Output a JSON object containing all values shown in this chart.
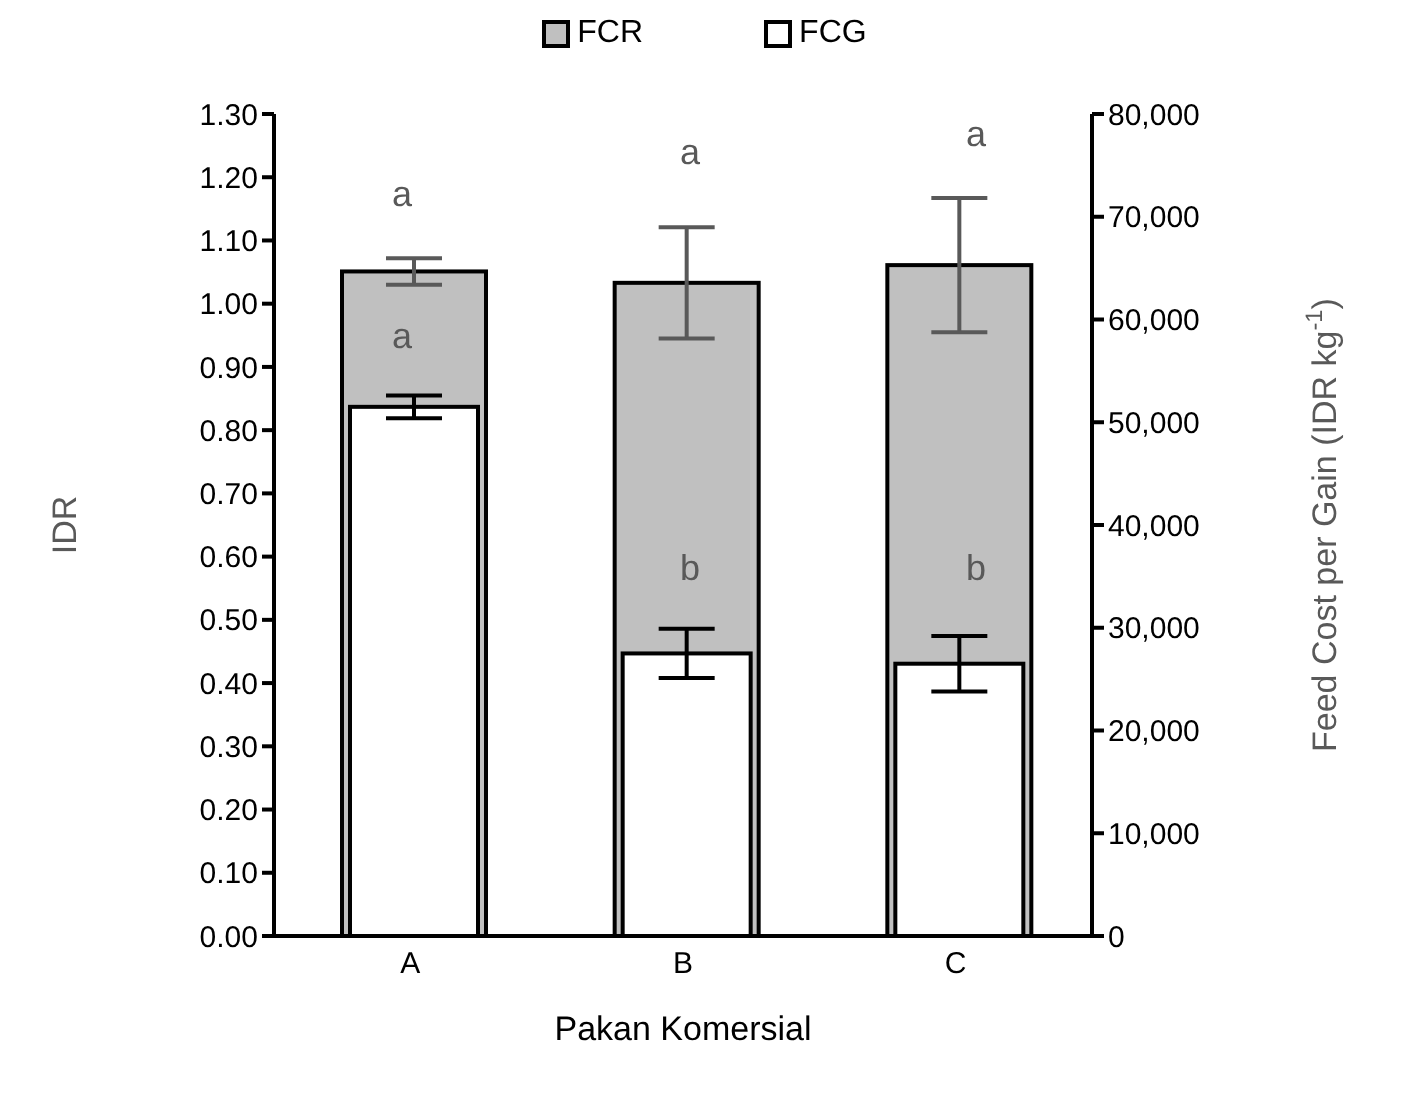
{
  "chart_data": {
    "type": "bar",
    "xlabel": "Pakan Komersial",
    "ylabel": "IDR",
    "y2label": "Feed Cost per Gain (IDR kg$^{-1}$)",
    "categories": [
      "A",
      "B",
      "C"
    ],
    "series": [
      {
        "name": "FCR",
        "color": "#c0c0c0",
        "values": [
          1.051,
          1.033,
          1.061
        ],
        "errors": [
          0.021,
          0.088,
          0.106
        ]
      },
      {
        "name": "FCG",
        "color": "#ffffff",
        "axis": "y2",
        "values": [
          51500,
          27500,
          26500
        ],
        "errors": [
          1100,
          2400,
          2700
        ]
      }
    ],
    "ylim": [
      0,
      1.3
    ],
    "yticks": [
      {
        "value": 0,
        "label": "0.00"
      },
      {
        "value": 0.1,
        "label": "0.10"
      },
      {
        "value": 0.2,
        "label": "0.20"
      },
      {
        "value": 0.3,
        "label": "0.30"
      },
      {
        "value": 0.4,
        "label": "0.40"
      },
      {
        "value": 0.5,
        "label": "0.50"
      },
      {
        "value": 0.6,
        "label": "0.60"
      },
      {
        "value": 0.7,
        "label": "0.70"
      },
      {
        "value": 0.8,
        "label": "0.80"
      },
      {
        "value": 0.9,
        "label": "0.90"
      },
      {
        "value": 1,
        "label": "1.00"
      },
      {
        "value": 1.1,
        "label": "1.10"
      },
      {
        "value": 1.2,
        "label": "1.20"
      },
      {
        "value": 1.3,
        "label": "1.30"
      }
    ],
    "y2lim": [
      0,
      80000
    ],
    "y2ticks": [
      0,
      {
        "value": 10000,
        "label": "10,000"
      },
      {
        "value": 20000,
        "label": "20,000"
      },
      {
        "value": 30000,
        "label": "30,000"
      },
      {
        "value": 40000,
        "label": "40,000"
      },
      {
        "value": 50000,
        "label": "50,000"
      },
      {
        "value": 60000,
        "label": "60,000"
      },
      {
        "value": 70000,
        "label": "70,000"
      },
      {
        "value": 80000,
        "label": "80,000"
      }
    ],
    "annotations": [
      "a",
      "a",
      "a",
      "a",
      "b",
      "b"
    ],
    "legend": "top",
    "grid": false
  }
}
